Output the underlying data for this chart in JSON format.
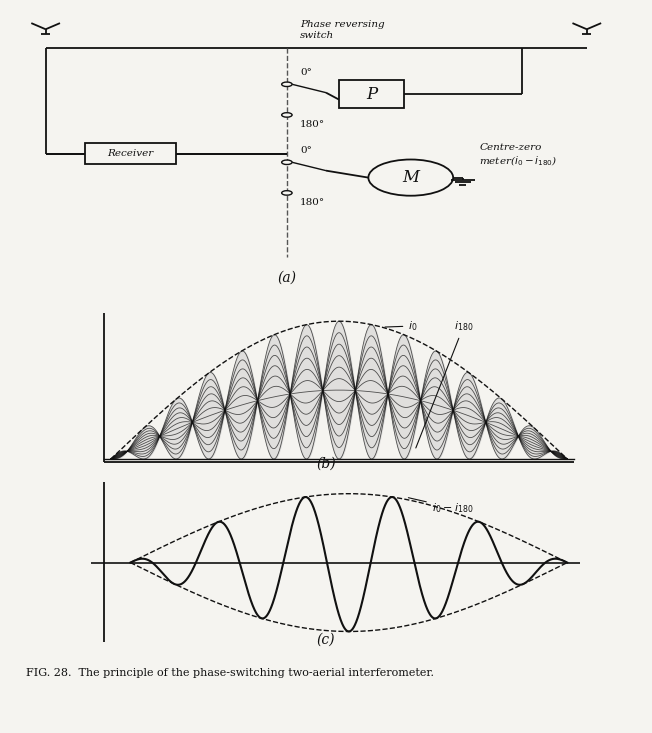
{
  "fig_width": 6.52,
  "fig_height": 7.33,
  "dpi": 100,
  "bg_color": "#f5f4f0",
  "line_color": "#111111",
  "label_a": "(a)",
  "label_b": "(b)",
  "label_c": "(c)",
  "caption": "FIG. 28.  The principle of the phase-switching two-aerial interferometer.",
  "n_fringes_b": 7,
  "n_fringes_c": 5
}
